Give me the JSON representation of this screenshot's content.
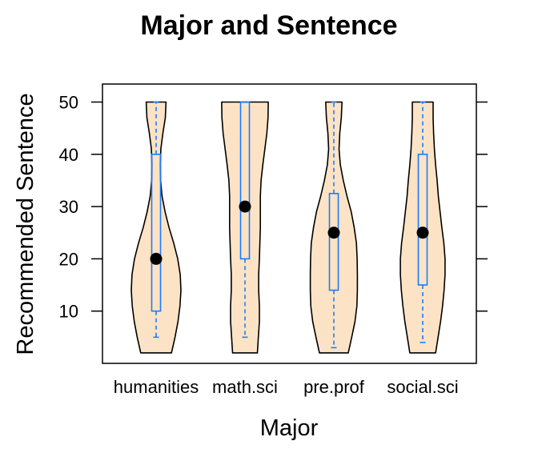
{
  "chart_data": {
    "type": "violin",
    "title": "Major and Sentence",
    "xlabel": "Major",
    "ylabel": "Recommended Sentence",
    "categories": [
      "humanities",
      "math.sci",
      "pre.prof",
      "social.sci"
    ],
    "y_ticks": [
      10,
      20,
      30,
      40,
      50
    ],
    "ylim": [
      0,
      53
    ],
    "grid": false,
    "colors": {
      "violin_fill": "#fde3c5",
      "violin_stroke": "#000000",
      "box": "#1a7cff",
      "median": "#000000"
    },
    "groups": [
      {
        "name": "humanities",
        "min": 5,
        "q1": 10,
        "median": 20,
        "q3": 40,
        "max": 50,
        "violin_range": [
          2,
          50
        ],
        "density": [
          [
            2,
            0.62
          ],
          [
            5,
            0.76
          ],
          [
            8,
            0.88
          ],
          [
            11,
            0.96
          ],
          [
            14,
            1.0
          ],
          [
            17,
            0.97
          ],
          [
            20,
            0.87
          ],
          [
            23,
            0.71
          ],
          [
            26,
            0.52
          ],
          [
            29,
            0.36
          ],
          [
            32,
            0.24
          ],
          [
            35,
            0.18
          ],
          [
            38,
            0.17
          ],
          [
            41,
            0.19
          ],
          [
            44,
            0.27
          ],
          [
            47,
            0.37
          ],
          [
            50,
            0.4
          ]
        ]
      },
      {
        "name": "math.sci",
        "min": 5,
        "q1": 20,
        "median": 30,
        "q3": 50,
        "max": 50,
        "violin_range": [
          2,
          50
        ],
        "density": [
          [
            2,
            0.5
          ],
          [
            5,
            0.54
          ],
          [
            8,
            0.58
          ],
          [
            11,
            0.58
          ],
          [
            14,
            0.55
          ],
          [
            17,
            0.55
          ],
          [
            20,
            0.58
          ],
          [
            23,
            0.6
          ],
          [
            26,
            0.62
          ],
          [
            29,
            0.62
          ],
          [
            32,
            0.62
          ],
          [
            35,
            0.65
          ],
          [
            38,
            0.72
          ],
          [
            41,
            0.8
          ],
          [
            44,
            0.88
          ],
          [
            47,
            0.93
          ],
          [
            50,
            0.94
          ]
        ]
      },
      {
        "name": "pre.prof",
        "min": 3,
        "q1": 14,
        "median": 25,
        "q3": 32.5,
        "max": 50,
        "violin_range": [
          2,
          50
        ],
        "density": [
          [
            2,
            0.58
          ],
          [
            5,
            0.72
          ],
          [
            8,
            0.85
          ],
          [
            11,
            0.93
          ],
          [
            14,
            0.95
          ],
          [
            17,
            0.95
          ],
          [
            20,
            0.94
          ],
          [
            23,
            0.91
          ],
          [
            26,
            0.82
          ],
          [
            29,
            0.7
          ],
          [
            32,
            0.53
          ],
          [
            35,
            0.38
          ],
          [
            38,
            0.26
          ],
          [
            41,
            0.21
          ],
          [
            44,
            0.24
          ],
          [
            47,
            0.3
          ],
          [
            50,
            0.33
          ]
        ]
      },
      {
        "name": "social.sci",
        "min": 4,
        "q1": 15,
        "median": 25,
        "q3": 40,
        "max": 50,
        "violin_range": [
          2,
          50
        ],
        "density": [
          [
            2,
            0.52
          ],
          [
            5,
            0.62
          ],
          [
            8,
            0.72
          ],
          [
            11,
            0.8
          ],
          [
            14,
            0.86
          ],
          [
            17,
            0.9
          ],
          [
            20,
            0.9
          ],
          [
            23,
            0.85
          ],
          [
            26,
            0.77
          ],
          [
            29,
            0.7
          ],
          [
            32,
            0.63
          ],
          [
            35,
            0.58
          ],
          [
            38,
            0.52
          ],
          [
            41,
            0.47
          ],
          [
            44,
            0.44
          ],
          [
            47,
            0.42
          ],
          [
            50,
            0.42
          ]
        ]
      }
    ]
  }
}
